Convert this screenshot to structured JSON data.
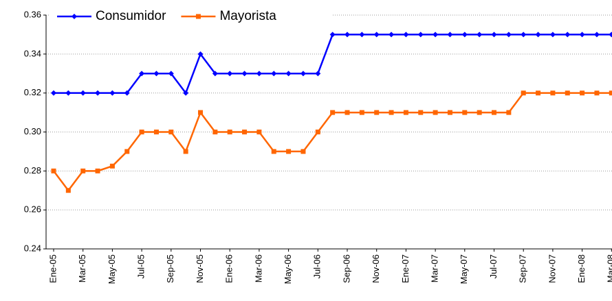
{
  "chart_data": {
    "type": "line",
    "categories": [
      "Ene-05",
      null,
      "Mar-05",
      null,
      "May-05",
      null,
      "Jul-05",
      null,
      "Sep-05",
      null,
      "Nov-05",
      null,
      "Ene-06",
      null,
      "Mar-06",
      null,
      "May-06",
      null,
      "Jul-06",
      null,
      "Sep-06",
      null,
      "Nov-06",
      null,
      "Ene-07",
      null,
      "Mar-07",
      null,
      "May-07",
      null,
      "Jul-07",
      null,
      "Sep-07",
      null,
      "Nov-07",
      null,
      "Ene-08",
      null,
      "Mar-08"
    ],
    "series": [
      {
        "name": "Consumidor",
        "color": "#0000ff",
        "marker": "diamond",
        "values": [
          0.32,
          0.32,
          0.32,
          0.32,
          0.32,
          0.32,
          0.33,
          0.33,
          0.33,
          0.32,
          0.34,
          0.33,
          0.33,
          0.33,
          0.33,
          0.33,
          0.33,
          0.33,
          0.33,
          0.35,
          0.35,
          0.35,
          0.35,
          0.35,
          0.35,
          0.35,
          0.35,
          0.35,
          0.35,
          0.35,
          0.35,
          0.35,
          0.35,
          0.35,
          0.35,
          0.35,
          0.35,
          0.35,
          0.35
        ]
      },
      {
        "name": "Mayorista",
        "color": "#ff6600",
        "marker": "square",
        "values": [
          0.28,
          0.27,
          0.28,
          0.28,
          0.2825,
          0.29,
          0.3,
          0.3,
          0.3,
          0.29,
          0.31,
          0.3,
          0.3,
          0.3,
          0.3,
          0.29,
          0.29,
          0.29,
          0.3,
          0.31,
          0.31,
          0.31,
          0.31,
          0.31,
          0.31,
          0.31,
          0.31,
          0.31,
          0.31,
          0.31,
          0.31,
          0.31,
          0.32,
          0.32,
          0.32,
          0.32,
          0.32,
          0.32,
          0.32
        ]
      }
    ],
    "ylim": [
      0.24,
      0.36
    ],
    "yticks": [
      0.24,
      0.26,
      0.28,
      {
        "value": 0.3,
        "label": "0.30"
      },
      0.32,
      0.34,
      0.36
    ],
    "grid": true,
    "legend": "top-left"
  }
}
